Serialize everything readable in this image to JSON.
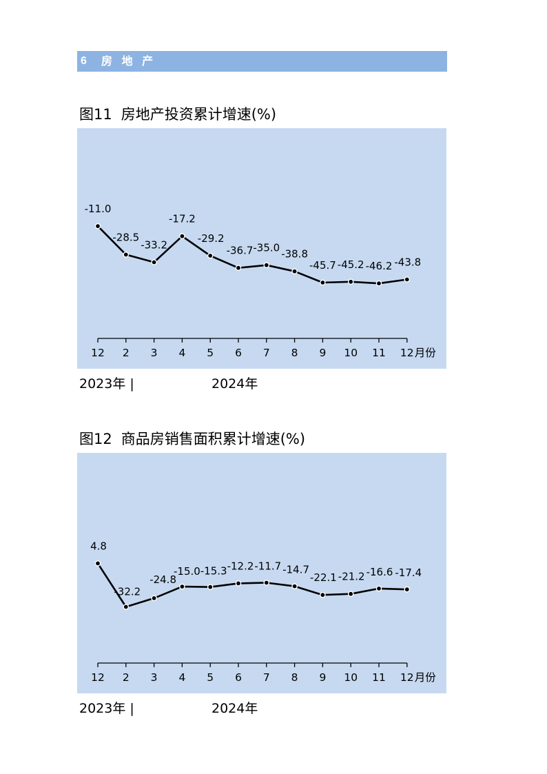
{
  "section": {
    "number": "6",
    "title": "房 地 产"
  },
  "colors": {
    "header_bar": "#8db3e2",
    "header_text": "#ffffff",
    "chart_panel": "#c6d9f1",
    "axis": "#000000",
    "series_line": "#000000",
    "marker_fill": "#000000",
    "marker_outline": "#ffffff",
    "text": "#000000"
  },
  "chart_data": [
    {
      "figure": "图11",
      "title": "房地产投资累计增速(%)",
      "type": "line",
      "categories": [
        "12",
        "2",
        "3",
        "4",
        "5",
        "6",
        "7",
        "8",
        "9",
        "10",
        "11",
        "12"
      ],
      "xlabel": "月份",
      "values": [
        -11.0,
        -28.5,
        -33.2,
        -17.2,
        -29.2,
        -36.7,
        -35.0,
        -38.8,
        -45.7,
        -45.2,
        -46.2,
        -43.8
      ],
      "data_labels": [
        "-11.0",
        "-28.5",
        "-33.2",
        "-17.2",
        "-29.2",
        "-36.7",
        "-35.0",
        "-38.8",
        "-45.7",
        "-45.2",
        "-46.2",
        "-43.8"
      ],
      "period_labels": [
        "2023年 |",
        "2024年"
      ],
      "ylim": [
        -80,
        50
      ],
      "grid": false,
      "legend": "none"
    },
    {
      "figure": "图12",
      "title": "商品房销售面积累计增速(%)",
      "type": "line",
      "categories": [
        "12",
        "2",
        "3",
        "4",
        "5",
        "6",
        "7",
        "8",
        "9",
        "10",
        "11",
        "12"
      ],
      "xlabel": "月份",
      "values": [
        4.8,
        -32.2,
        -24.8,
        -15.0,
        -15.3,
        -12.2,
        -11.7,
        -14.7,
        -22.1,
        -21.2,
        -16.6,
        -17.4
      ],
      "data_labels": [
        "4.8",
        "-32.2",
        "-24.8",
        "-15.0",
        "-15.3",
        "-12.2",
        "-11.7",
        "-14.7",
        "-22.1",
        "-21.2",
        "-16.6",
        "-17.4"
      ],
      "period_labels": [
        "2023年 |",
        "2024年"
      ],
      "ylim": [
        -80,
        100
      ],
      "grid": false,
      "legend": "none"
    }
  ]
}
